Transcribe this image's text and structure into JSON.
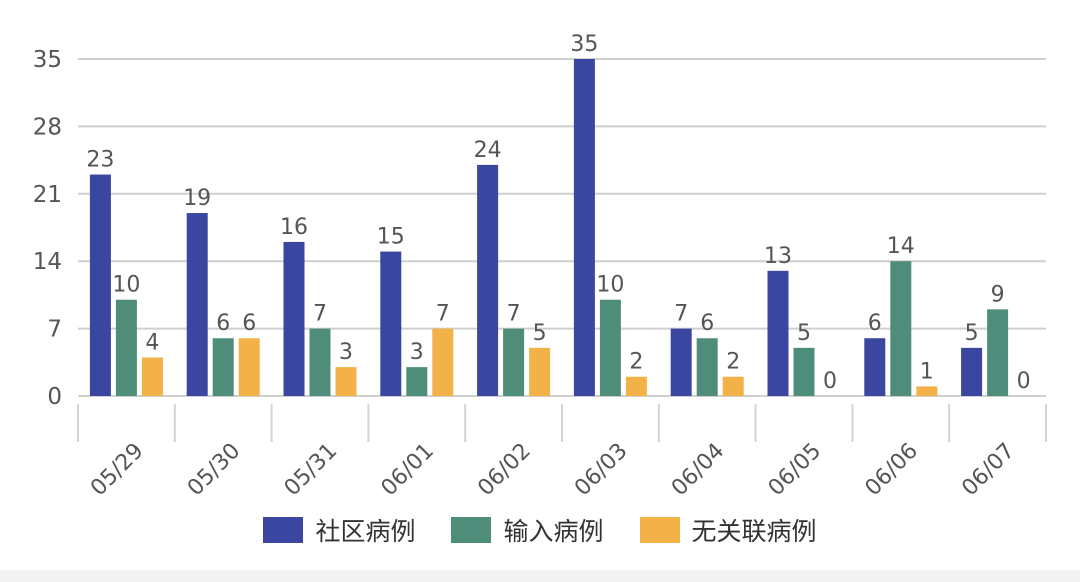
{
  "chart_data": {
    "type": "bar",
    "categories": [
      "05/29",
      "05/30",
      "05/31",
      "06/01",
      "06/02",
      "06/03",
      "06/04",
      "06/05",
      "06/06",
      "06/07"
    ],
    "series": [
      {
        "name": "社区病例",
        "color": "#3a46a0",
        "values": [
          23,
          19,
          16,
          15,
          24,
          35,
          7,
          13,
          6,
          5
        ]
      },
      {
        "name": "输入病例",
        "color": "#4f8d7b",
        "values": [
          10,
          6,
          7,
          3,
          7,
          10,
          6,
          5,
          14,
          9
        ]
      },
      {
        "name": "无关联病例",
        "color": "#f2b247",
        "values": [
          4,
          6,
          3,
          7,
          5,
          2,
          2,
          0,
          1,
          0
        ]
      }
    ],
    "yticks": [
      "0",
      "7",
      "14",
      "21",
      "28",
      "35"
    ],
    "ylim": [
      0,
      35
    ],
    "grid": true,
    "legend_position": "bottom"
  }
}
